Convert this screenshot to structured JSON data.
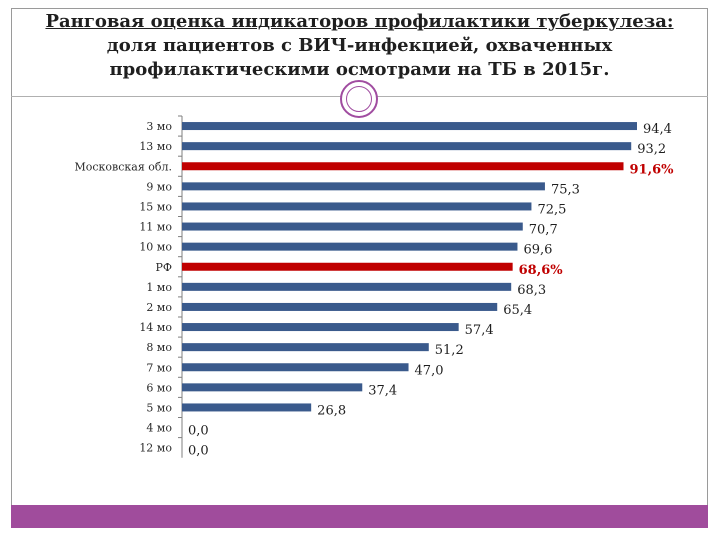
{
  "slide": {
    "title_line1": "Ранговая оценка индикаторов профилактики туберкулеза:",
    "title_line2": "доля пациентов с ВИЧ-инфекцией, охваченных",
    "title_line3": "профилактическими осмотрами на ТБ в 2015г."
  },
  "colors": {
    "bar_default": "#3a5a8c",
    "bar_highlight": "#c00000",
    "accent": "#a04c9c"
  },
  "chart_data": {
    "type": "bar",
    "orientation": "horizontal",
    "title": "",
    "xlabel": "",
    "ylabel": "",
    "xlim": [
      0,
      100
    ],
    "grid": false,
    "categories": [
      "3 мо",
      "13 мо",
      "Московская обл.",
      "9 мо",
      "15 мо",
      "11 мо",
      "10 мо",
      "РФ",
      "1 мо",
      "2 мо",
      "14 мо",
      "8 мо",
      "7 мо",
      "6 мо",
      "5 мо",
      "4 мо",
      "12 мо"
    ],
    "values": [
      94.4,
      93.2,
      91.6,
      75.3,
      72.5,
      70.7,
      69.6,
      68.6,
      68.3,
      65.4,
      57.4,
      51.2,
      47.0,
      37.4,
      26.8,
      0.0,
      0.0
    ],
    "value_labels": [
      "94,4",
      "93,2",
      "91,6%",
      "75,3",
      "72,5",
      "70,7",
      "69,6",
      "68,6%",
      "68,3",
      "65,4",
      "57,4",
      "51,2",
      "47,0",
      "37,4",
      "26,8",
      "0,0",
      "0,0"
    ],
    "highlighted": [
      "Московская обл.",
      "РФ"
    ]
  }
}
